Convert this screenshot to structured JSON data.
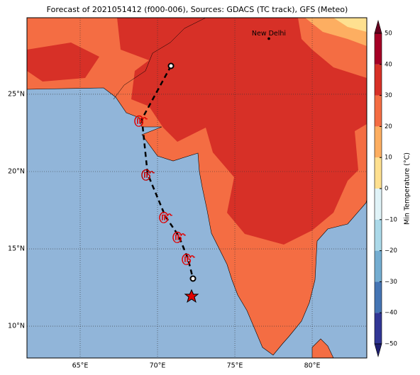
{
  "title": "Forecast of 2021051412 (f000-006), Sources: GDACS (TC track), GFS (Meteo)",
  "map": {
    "xlim": [
      61.56,
      83.53
    ],
    "ylim": [
      7.94,
      29.95
    ],
    "xticks": [
      {
        "value": 65,
        "label": "65°E"
      },
      {
        "value": 70,
        "label": "70°E"
      },
      {
        "value": 75,
        "label": "75°E"
      },
      {
        "value": 80,
        "label": "80°E"
      }
    ],
    "yticks": [
      {
        "value": 10,
        "label": "10°N"
      },
      {
        "value": 15,
        "label": "15°N"
      },
      {
        "value": 20,
        "label": "20°N"
      },
      {
        "value": 25,
        "label": "25°N"
      }
    ],
    "places": [
      {
        "name": "New Delhi",
        "lon": 77.2,
        "lat": 28.6
      }
    ]
  },
  "colorbar": {
    "label": "Min Temperature (°C)",
    "lim": [
      -50,
      50
    ],
    "ticks": [
      {
        "value": -50,
        "label": "−50"
      },
      {
        "value": -40,
        "label": "−40"
      },
      {
        "value": -30,
        "label": "−30"
      },
      {
        "value": -20,
        "label": "−20"
      },
      {
        "value": -10,
        "label": "−10"
      },
      0,
      10,
      20,
      30,
      40,
      50
    ],
    "colors": [
      "#313695",
      "#4575b4",
      "#74add1",
      "#abd9e9",
      "#e0f3f8",
      "#fee090",
      "#fdae61",
      "#f46d43",
      "#d73027",
      "#a50026"
    ]
  }
}
